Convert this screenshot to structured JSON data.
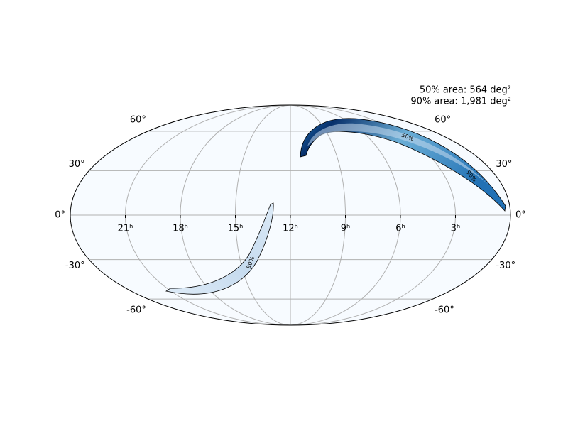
{
  "annotations": {
    "area_50": "50% area: 564 deg²",
    "area_90": "90% area: 1,981 deg²"
  },
  "ra_ticks": [
    {
      "value": 21,
      "label": "21ʰ"
    },
    {
      "value": 18,
      "label": "18ʰ"
    },
    {
      "value": 15,
      "label": "15ʰ"
    },
    {
      "value": 12,
      "label": "12ʰ"
    },
    {
      "value": 9,
      "label": "9ʰ"
    },
    {
      "value": 6,
      "label": "6ʰ"
    },
    {
      "value": 3,
      "label": "3ʰ"
    }
  ],
  "dec_ticks": [
    {
      "value": 60,
      "label": "60°"
    },
    {
      "value": 30,
      "label": "30°"
    },
    {
      "value": 0,
      "label": "0°"
    },
    {
      "value": -30,
      "label": "-30°"
    },
    {
      "value": -60,
      "label": "-60°"
    }
  ],
  "contour_labels": [
    "50%",
    "90%",
    "90%"
  ]
}
